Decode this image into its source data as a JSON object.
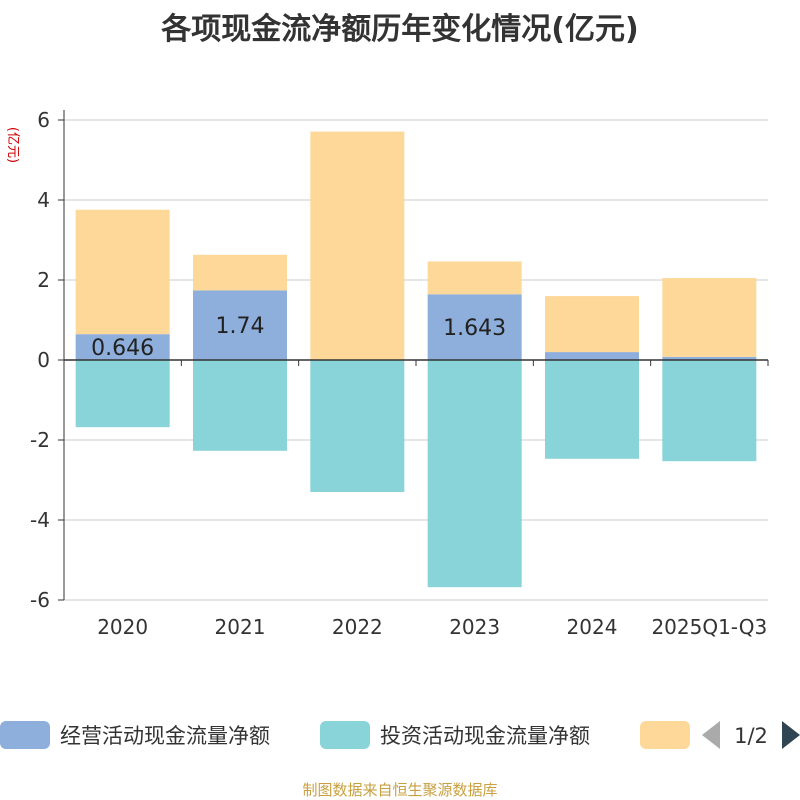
{
  "chart_data": {
    "type": "bar",
    "title": "各项现金流净额历年变化情况(亿元)",
    "ylabel": "(亿元)",
    "xlabel": "",
    "categories": [
      "2020",
      "2021",
      "2022",
      "2023",
      "2024",
      "2025Q1-Q3"
    ],
    "ylim": [
      -6,
      6
    ],
    "yticks": [
      "6",
      "4",
      "2",
      "0",
      "-2",
      "-4",
      "-6"
    ],
    "ytick_values": [
      6,
      4,
      2,
      0,
      -2,
      -4,
      -6
    ],
    "grid": true,
    "stacked": true,
    "series": [
      {
        "name": "经营活动现金流量净额",
        "color": "#8eaedc",
        "values": [
          0.646,
          1.74,
          0.011,
          1.643,
          0.198,
          0.079
        ],
        "labels": [
          "0.646",
          "1.74",
          "",
          "1.643",
          "",
          ""
        ]
      },
      {
        "name": "投资活动现金流量净额",
        "color": "#88d4d8",
        "values": [
          -1.68,
          -2.27,
          -3.3,
          -5.68,
          -2.47,
          -2.53
        ],
        "labels": [
          "",
          "",
          "",
          "",
          "",
          ""
        ]
      },
      {
        "name": "",
        "color": "#fed898",
        "values": [
          3.11,
          0.89,
          5.7,
          0.82,
          1.4,
          1.97
        ],
        "labels": [
          "",
          "",
          "",
          "",
          "",
          ""
        ]
      }
    ],
    "legend": {
      "position": "bottom",
      "page": "1/2",
      "prev_icon": "triangle-left-icon",
      "next_icon": "triangle-right-icon",
      "inactive_color": "#aaaaaa",
      "active_color": "#2f4554"
    }
  },
  "source": "制图数据来自恒生聚源数据库"
}
